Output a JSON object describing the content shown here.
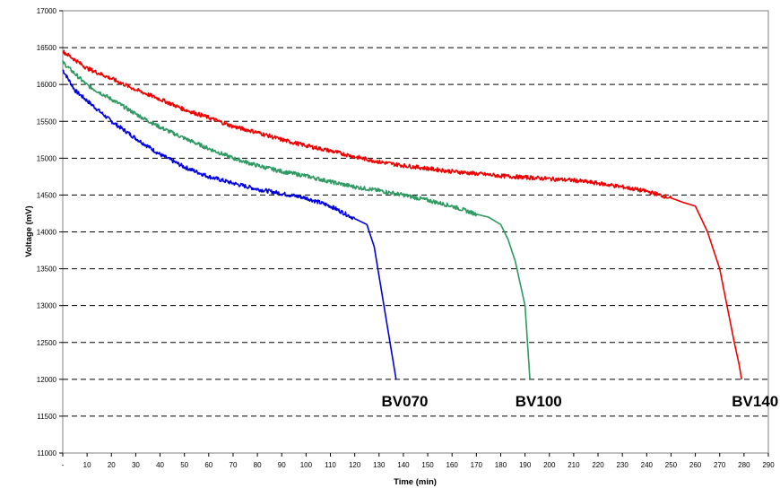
{
  "chart_data": {
    "type": "line",
    "title": "",
    "xlabel": "Time (min)",
    "ylabel": "Voltage (mV)",
    "xlim": [
      0,
      290
    ],
    "ylim": [
      11000,
      17000
    ],
    "x_ticks": [
      0,
      10,
      20,
      30,
      40,
      50,
      60,
      70,
      80,
      90,
      100,
      110,
      120,
      130,
      140,
      150,
      160,
      170,
      180,
      190,
      200,
      210,
      220,
      230,
      240,
      250,
      260,
      270,
      280,
      290
    ],
    "x_tick_labels": [
      "-",
      "10",
      "20",
      "30",
      "40",
      "50",
      "60",
      "70",
      "80",
      "90",
      "100",
      "110",
      "120",
      "130",
      "140",
      "150",
      "160",
      "170",
      "180",
      "190",
      "200",
      "210",
      "220",
      "230",
      "240",
      "250",
      "260",
      "270",
      "280",
      "290"
    ],
    "y_ticks": [
      11000,
      11500,
      12000,
      12500,
      13000,
      13500,
      14000,
      14500,
      15000,
      15500,
      16000,
      16500,
      17000
    ],
    "y_tick_labels": [
      "11000",
      "11500",
      "12000",
      "12500",
      "13000",
      "13500",
      "14000",
      "14500",
      "15000",
      "15500",
      "16000",
      "16500",
      "17000"
    ],
    "grid": "horizontal dashed",
    "legend": "none",
    "series": [
      {
        "name": "BV070",
        "color": "#0000dd",
        "x": [
          0,
          5,
          10,
          20,
          30,
          40,
          50,
          60,
          70,
          80,
          90,
          100,
          110,
          120,
          125,
          128,
          130,
          132,
          134,
          135,
          136,
          137
        ],
        "y": [
          16200,
          15920,
          15780,
          15500,
          15270,
          15050,
          14880,
          14750,
          14660,
          14580,
          14520,
          14460,
          14350,
          14180,
          14100,
          13800,
          13400,
          13000,
          12600,
          12400,
          12200,
          12000
        ]
      },
      {
        "name": "BV100",
        "color": "#2e9960",
        "x": [
          0,
          10,
          20,
          30,
          40,
          50,
          60,
          70,
          80,
          90,
          100,
          110,
          120,
          130,
          140,
          150,
          160,
          170,
          175,
          180,
          183,
          186,
          188,
          190,
          191,
          192
        ],
        "y": [
          16300,
          15990,
          15800,
          15600,
          15420,
          15270,
          15130,
          15000,
          14900,
          14820,
          14760,
          14680,
          14610,
          14560,
          14500,
          14430,
          14350,
          14240,
          14200,
          14100,
          13900,
          13600,
          13300,
          13000,
          12500,
          12000
        ]
      },
      {
        "name": "BV140",
        "color": "#ee0000",
        "x": [
          0,
          10,
          20,
          30,
          40,
          50,
          60,
          70,
          80,
          90,
          100,
          110,
          120,
          130,
          140,
          150,
          160,
          170,
          180,
          190,
          200,
          210,
          220,
          230,
          240,
          250,
          255,
          260,
          265,
          270,
          273,
          276,
          278,
          279
        ],
        "y": [
          16450,
          16220,
          16080,
          15930,
          15800,
          15660,
          15550,
          15430,
          15350,
          15250,
          15170,
          15100,
          15020,
          14950,
          14900,
          14860,
          14820,
          14790,
          14760,
          14740,
          14720,
          14700,
          14660,
          14610,
          14550,
          14460,
          14400,
          14350,
          14000,
          13500,
          13000,
          12500,
          12200,
          12000
        ]
      }
    ],
    "annotations": [
      {
        "text": "BV070",
        "x": 131,
        "y": 11850
      },
      {
        "text": "BV100",
        "x": 186,
        "y": 11850
      },
      {
        "text": "BV140",
        "x": 275,
        "y": 11850
      }
    ]
  }
}
